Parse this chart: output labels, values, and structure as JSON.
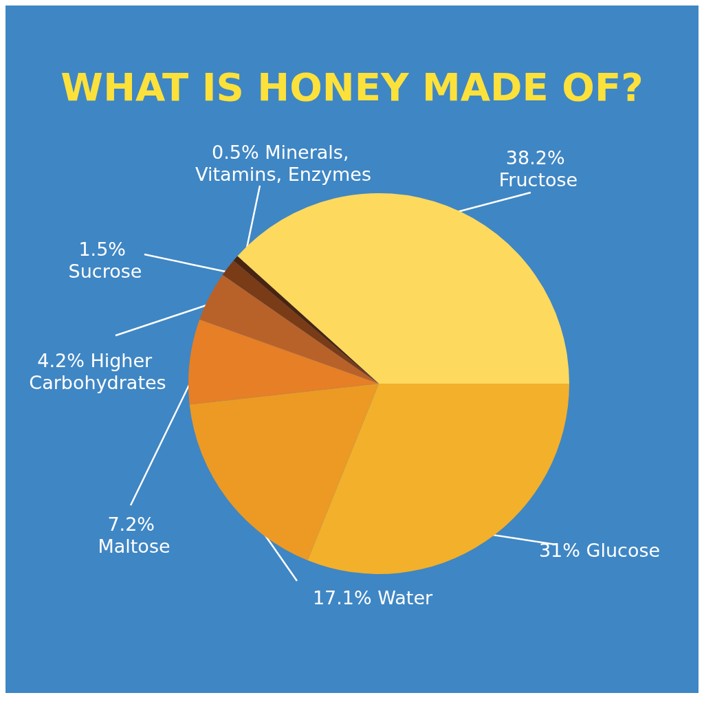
{
  "chart_data": {
    "type": "pie",
    "title": "WHAT IS HONEY MADE OF?",
    "categories": [
      "Fructose",
      "Minerals, Vitamins, Enzymes",
      "Sucrose",
      "Higher Carbohydrates",
      "Maltose",
      "Water",
      "Glucose"
    ],
    "values": [
      38.2,
      0.5,
      1.5,
      4.2,
      7.2,
      17.1,
      31
    ],
    "value_labels": [
      "38.2%",
      "0.5%",
      "1.5%",
      "4.2%",
      "7.2%",
      "17.1%",
      "31%"
    ],
    "colors": [
      "#fdd95e",
      "#4a2410",
      "#7a3b17",
      "#b8622a",
      "#e67f25",
      "#ec9a24",
      "#f3b02a"
    ]
  }
}
